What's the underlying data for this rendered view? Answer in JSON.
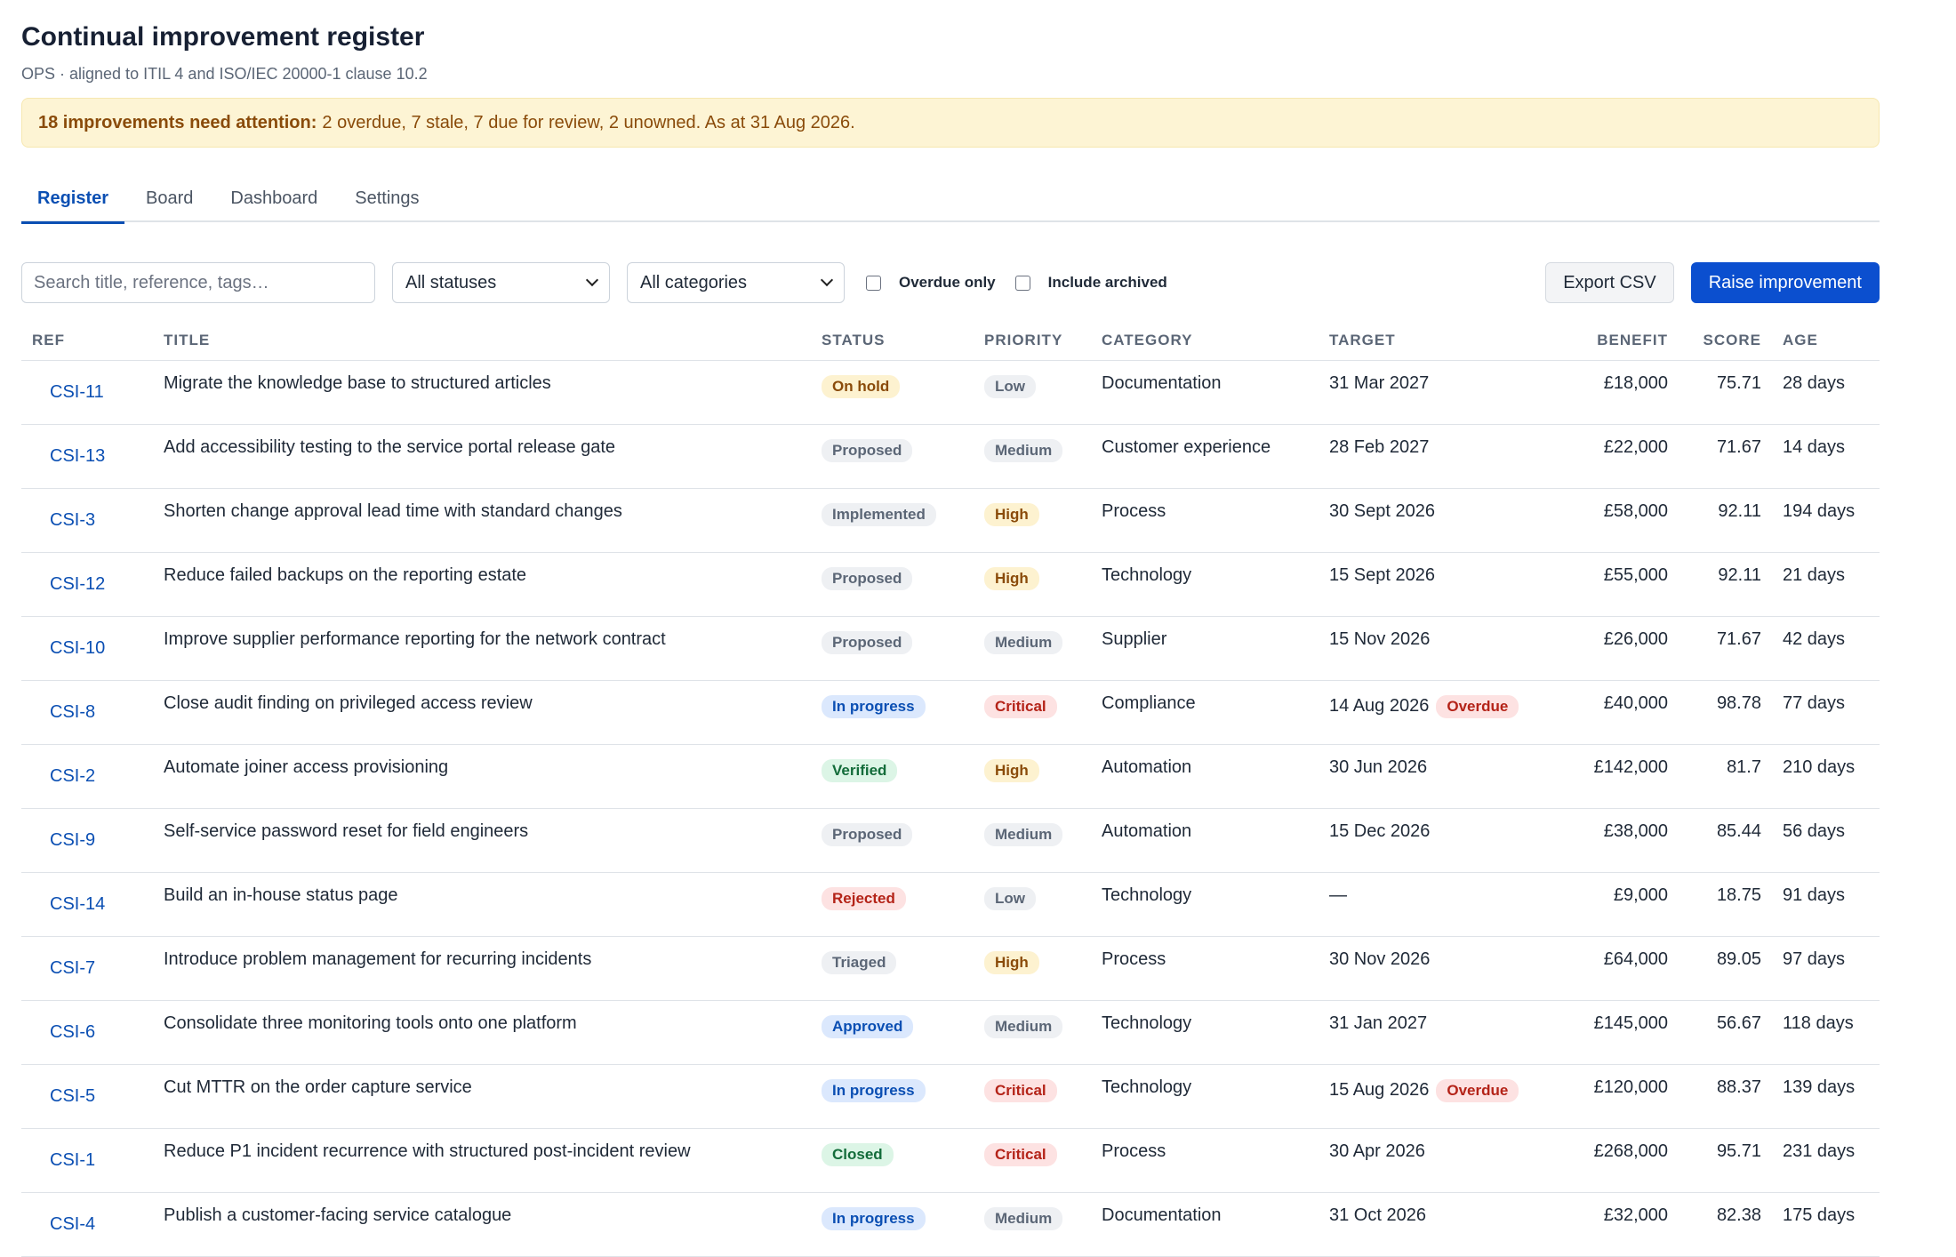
{
  "header": {
    "title": "Continual improvement register",
    "subtitle": "OPS · aligned to ITIL 4 and ISO/IEC 20000-1 clause 10.2"
  },
  "alert": {
    "strong": "18 improvements need attention:",
    "text": "2 overdue, 7 stale, 7 due for review, 2 unowned. As at 31 Aug 2026."
  },
  "tabs": [
    {
      "label": "Register",
      "active": true
    },
    {
      "label": "Board",
      "active": false
    },
    {
      "label": "Dashboard",
      "active": false
    },
    {
      "label": "Settings",
      "active": false
    }
  ],
  "toolbar": {
    "search_placeholder": "Search title, reference, tags…",
    "status_filter": "All statuses",
    "category_filter": "All categories",
    "overdue_only": "Overdue only",
    "include_archived": "Include archived",
    "export_label": "Export CSV",
    "raise_label": "Raise improvement"
  },
  "columns": {
    "ref": "REF",
    "title": "TITLE",
    "status": "STATUS",
    "priority": "PRIORITY",
    "category": "CATEGORY",
    "target": "TARGET",
    "benefit": "BENEFIT",
    "score": "SCORE",
    "age": "AGE"
  },
  "rows": [
    {
      "ref": "CSI-11",
      "title": "Migrate the knowledge base to structured articles",
      "status": "On hold",
      "status_tone": "amber",
      "priority": "Low",
      "priority_tone": "gray",
      "category": "Documentation",
      "target": "31 Mar 2027",
      "overdue": "",
      "benefit": "£18,000",
      "score": "75.71",
      "age": "28 days"
    },
    {
      "ref": "CSI-13",
      "title": "Add accessibility testing to the service portal release gate",
      "status": "Proposed",
      "status_tone": "gray",
      "priority": "Medium",
      "priority_tone": "gray",
      "category": "Customer experience",
      "target": "28 Feb 2027",
      "overdue": "",
      "benefit": "£22,000",
      "score": "71.67",
      "age": "14 days"
    },
    {
      "ref": "CSI-3",
      "title": "Shorten change approval lead time with standard changes",
      "status": "Implemented",
      "status_tone": "gray",
      "priority": "High",
      "priority_tone": "amber",
      "category": "Process",
      "target": "30 Sept 2026",
      "overdue": "",
      "benefit": "£58,000",
      "score": "92.11",
      "age": "194 days"
    },
    {
      "ref": "CSI-12",
      "title": "Reduce failed backups on the reporting estate",
      "status": "Proposed",
      "status_tone": "gray",
      "priority": "High",
      "priority_tone": "amber",
      "category": "Technology",
      "target": "15 Sept 2026",
      "overdue": "",
      "benefit": "£55,000",
      "score": "92.11",
      "age": "21 days"
    },
    {
      "ref": "CSI-10",
      "title": "Improve supplier performance reporting for the network contract",
      "status": "Proposed",
      "status_tone": "gray",
      "priority": "Medium",
      "priority_tone": "gray",
      "category": "Supplier",
      "target": "15 Nov 2026",
      "overdue": "",
      "benefit": "£26,000",
      "score": "71.67",
      "age": "42 days"
    },
    {
      "ref": "CSI-8",
      "title": "Close audit finding on privileged access review",
      "status": "In progress",
      "status_tone": "blue",
      "priority": "Critical",
      "priority_tone": "red",
      "category": "Compliance",
      "target": "14 Aug 2026",
      "overdue": "Overdue",
      "benefit": "£40,000",
      "score": "98.78",
      "age": "77 days"
    },
    {
      "ref": "CSI-2",
      "title": "Automate joiner access provisioning",
      "status": "Verified",
      "status_tone": "green",
      "priority": "High",
      "priority_tone": "amber",
      "category": "Automation",
      "target": "30 Jun 2026",
      "overdue": "",
      "benefit": "£142,000",
      "score": "81.7",
      "age": "210 days"
    },
    {
      "ref": "CSI-9",
      "title": "Self-service password reset for field engineers",
      "status": "Proposed",
      "status_tone": "gray",
      "priority": "Medium",
      "priority_tone": "gray",
      "category": "Automation",
      "target": "15 Dec 2026",
      "overdue": "",
      "benefit": "£38,000",
      "score": "85.44",
      "age": "56 days"
    },
    {
      "ref": "CSI-14",
      "title": "Build an in-house status page",
      "status": "Rejected",
      "status_tone": "red",
      "priority": "Low",
      "priority_tone": "gray",
      "category": "Technology",
      "target": "—",
      "overdue": "",
      "benefit": "£9,000",
      "score": "18.75",
      "age": "91 days"
    },
    {
      "ref": "CSI-7",
      "title": "Introduce problem management for recurring incidents",
      "status": "Triaged",
      "status_tone": "gray",
      "priority": "High",
      "priority_tone": "amber",
      "category": "Process",
      "target": "30 Nov 2026",
      "overdue": "",
      "benefit": "£64,000",
      "score": "89.05",
      "age": "97 days"
    },
    {
      "ref": "CSI-6",
      "title": "Consolidate three monitoring tools onto one platform",
      "status": "Approved",
      "status_tone": "blue",
      "priority": "Medium",
      "priority_tone": "gray",
      "category": "Technology",
      "target": "31 Jan 2027",
      "overdue": "",
      "benefit": "£145,000",
      "score": "56.67",
      "age": "118 days"
    },
    {
      "ref": "CSI-5",
      "title": "Cut MTTR on the order capture service",
      "status": "In progress",
      "status_tone": "blue",
      "priority": "Critical",
      "priority_tone": "red",
      "category": "Technology",
      "target": "15 Aug 2026",
      "overdue": "Overdue",
      "benefit": "£120,000",
      "score": "88.37",
      "age": "139 days"
    },
    {
      "ref": "CSI-1",
      "title": "Reduce P1 incident recurrence with structured post-incident review",
      "status": "Closed",
      "status_tone": "green",
      "priority": "Critical",
      "priority_tone": "red",
      "category": "Process",
      "target": "30 Apr 2026",
      "overdue": "",
      "benefit": "£268,000",
      "score": "95.71",
      "age": "231 days"
    },
    {
      "ref": "CSI-4",
      "title": "Publish a customer-facing service catalogue",
      "status": "In progress",
      "status_tone": "blue",
      "priority": "Medium",
      "priority_tone": "gray",
      "category": "Documentation",
      "target": "31 Oct 2026",
      "overdue": "",
      "benefit": "£32,000",
      "score": "82.38",
      "age": "175 days"
    }
  ]
}
